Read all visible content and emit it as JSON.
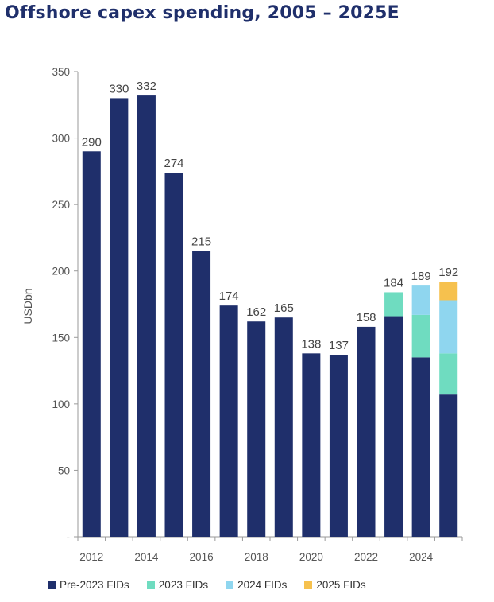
{
  "chart_data": {
    "type": "bar",
    "stacked": true,
    "title": "Offshore capex spending, 2005 – 2025E",
    "ylabel": "USDbn",
    "ylim": [
      0,
      350
    ],
    "yticks": [
      "-",
      "50",
      "100",
      "150",
      "200",
      "250",
      "300",
      "350"
    ],
    "ytick_values": [
      0,
      50,
      100,
      150,
      200,
      250,
      300,
      350
    ],
    "categories": [
      "2012",
      "2013",
      "2014",
      "2015",
      "2016",
      "2017",
      "2018",
      "2019",
      "2020",
      "2021",
      "2022",
      "2023",
      "2024",
      "2025"
    ],
    "x_tick_labels": [
      "2012",
      "",
      "2014",
      "",
      "2016",
      "",
      "2018",
      "",
      "2020",
      "",
      "2022",
      "",
      "2024",
      ""
    ],
    "totals": [
      290,
      330,
      332,
      274,
      215,
      174,
      162,
      165,
      138,
      137,
      158,
      184,
      189,
      192
    ],
    "series": [
      {
        "name": "Pre-2023 FIDs",
        "color": "#1f2f6b",
        "values": [
          290,
          330,
          332,
          274,
          215,
          174,
          162,
          165,
          138,
          137,
          158,
          166,
          135,
          107
        ]
      },
      {
        "name": "2023 FIDs",
        "color": "#6fdcc0",
        "values": [
          0,
          0,
          0,
          0,
          0,
          0,
          0,
          0,
          0,
          0,
          0,
          18,
          32,
          31
        ]
      },
      {
        "name": "2024 FIDs",
        "color": "#8fd6ef",
        "values": [
          0,
          0,
          0,
          0,
          0,
          0,
          0,
          0,
          0,
          0,
          0,
          0,
          22,
          40
        ]
      },
      {
        "name": "2025 FIDs",
        "color": "#f6c14e",
        "values": [
          0,
          0,
          0,
          0,
          0,
          0,
          0,
          0,
          0,
          0,
          0,
          0,
          0,
          14
        ]
      }
    ],
    "grid": false,
    "legend_position": "bottom"
  }
}
